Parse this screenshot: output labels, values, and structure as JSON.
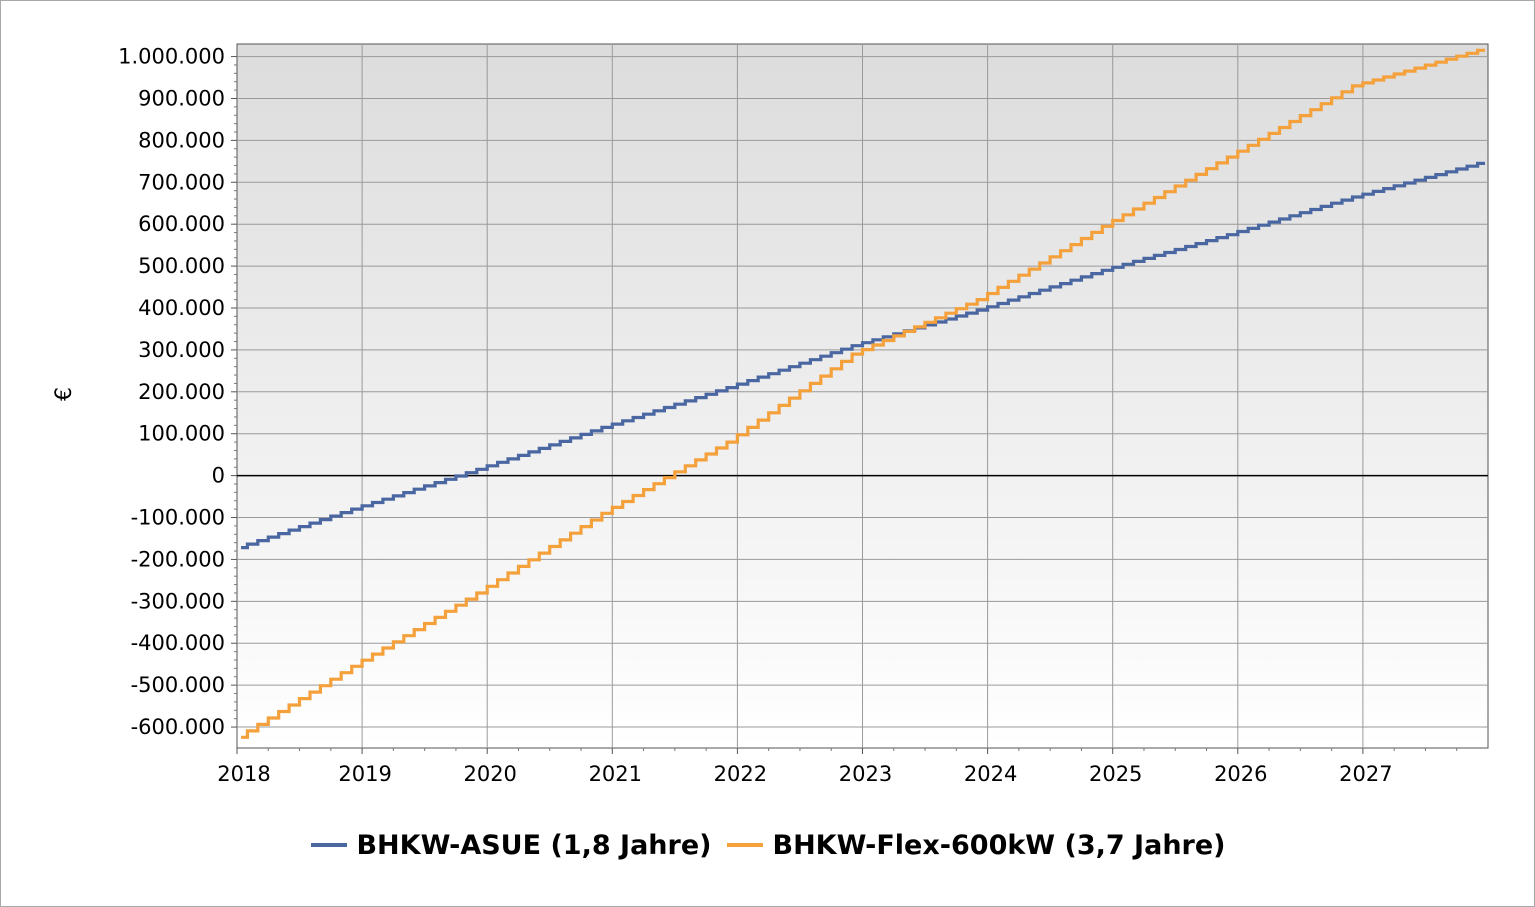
{
  "chart_data": {
    "type": "line",
    "step": true,
    "title": "",
    "xlabel": "",
    "ylabel": "€",
    "xlim": [
      2018,
      2028
    ],
    "ylim": [
      -650000,
      1030000
    ],
    "x_ticks": [
      "2018",
      "2019",
      "2020",
      "2021",
      "2022",
      "2023",
      "2024",
      "2025",
      "2026",
      "2027"
    ],
    "y_ticks": [
      {
        "value": 1000000,
        "label": "1.000.000"
      },
      {
        "value": 900000,
        "label": "900.000"
      },
      {
        "value": 800000,
        "label": "800.000"
      },
      {
        "value": 700000,
        "label": "700.000"
      },
      {
        "value": 600000,
        "label": "600.000"
      },
      {
        "value": 500000,
        "label": "500.000"
      },
      {
        "value": 400000,
        "label": "400.000"
      },
      {
        "value": 300000,
        "label": "300.000"
      },
      {
        "value": 200000,
        "label": "200.000"
      },
      {
        "value": 100000,
        "label": "100.000"
      },
      {
        "value": 0,
        "label": "0"
      },
      {
        "value": -100000,
        "label": "-100.000"
      },
      {
        "value": -200000,
        "label": "-200.000"
      },
      {
        "value": -300000,
        "label": "-300.000"
      },
      {
        "value": -400000,
        "label": "-400.000"
      },
      {
        "value": -500000,
        "label": "-500.000"
      },
      {
        "value": -600000,
        "label": "-600.000"
      }
    ],
    "grid": true,
    "legend_position": "bottom",
    "series": [
      {
        "name": "BHKW-ASUE (1,8 Jahre)",
        "color": "#4a67a1",
        "x": [
          2018,
          2019,
          2020,
          2021,
          2022,
          2023,
          2024,
          2025,
          2026,
          2027,
          2028
        ],
        "y": [
          -180000,
          -80000,
          15000,
          115000,
          210000,
          310000,
          395000,
          490000,
          575000,
          665000,
          745000
        ]
      },
      {
        "name": "BHKW-Flex-600kW (3,7 Jahre)",
        "color": "#f4a13c",
        "x": [
          2018,
          2019,
          2020,
          2021,
          2022,
          2023,
          2024,
          2025,
          2026,
          2027,
          2028
        ],
        "y": [
          -640000,
          -455000,
          -280000,
          -90000,
          80000,
          290000,
          420000,
          595000,
          760000,
          930000,
          1015000
        ]
      }
    ]
  }
}
